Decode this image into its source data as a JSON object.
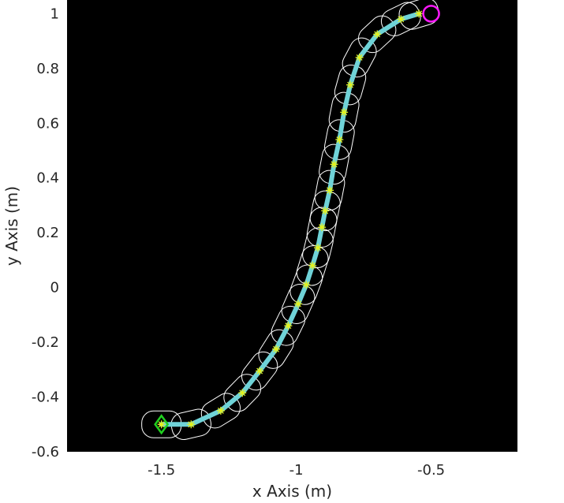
{
  "chart_data": {
    "type": "line",
    "title": "",
    "xlabel": "x Axis (m)",
    "ylabel": "y Axis (m)",
    "xlim": [
      -1.85,
      -0.18
    ],
    "ylim": [
      -0.6,
      1.05
    ],
    "xticks": [
      -1.5,
      -1,
      -0.5
    ],
    "xtick_labels": [
      "-1.5",
      "-1",
      "-0.5"
    ],
    "yticks": [
      -0.6,
      -0.4,
      -0.2,
      0,
      0.2,
      0.4,
      0.6,
      0.8,
      1
    ],
    "ytick_labels": [
      "-0.6",
      "-0.4",
      "-0.2",
      "0",
      "0.2",
      "0.4",
      "0.6",
      "0.8",
      "1"
    ],
    "grid": false,
    "background": "#000000",
    "path_color": "#6fd3d8",
    "waypoint_color": "#e6f21a",
    "footprint_color": "#ffffff",
    "start_marker_color": "#1fd11f",
    "goal_marker_color": "#ff19ff",
    "path": {
      "x": [
        -1.5,
        -1.39,
        -1.28,
        -1.2,
        -1.136,
        -1.075,
        -1.03,
        -0.993,
        -0.963,
        -0.94,
        -0.92,
        -0.905,
        -0.893,
        -0.876,
        -0.86,
        -0.84,
        -0.823,
        -0.8,
        -0.766,
        -0.7,
        -0.612,
        -0.545
      ],
      "y": [
        -0.5,
        -0.5,
        -0.45,
        -0.385,
        -0.305,
        -0.225,
        -0.14,
        -0.06,
        0.01,
        0.08,
        0.145,
        0.22,
        0.28,
        0.355,
        0.45,
        0.54,
        0.64,
        0.74,
        0.84,
        0.925,
        0.98,
        1.0
      ]
    },
    "start": {
      "x": -1.5,
      "y": -0.5,
      "marker": "diamond"
    },
    "goal": {
      "x": -0.5,
      "y": 1.0,
      "marker": "circle"
    }
  }
}
